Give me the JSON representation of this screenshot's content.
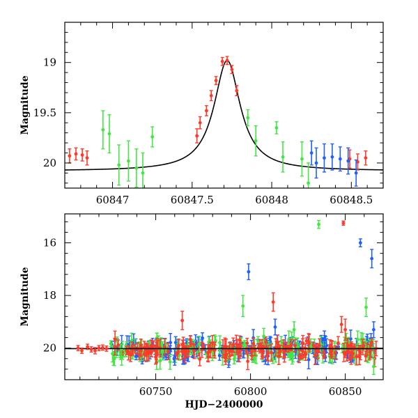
{
  "colors": {
    "red": "#ff3a2a",
    "green": "#44e644",
    "blue": "#2060ff",
    "model": "#000000"
  },
  "chart_data": [
    {
      "type": "scatter",
      "title": "",
      "xlabel": "",
      "ylabel": "Magnitude",
      "xlim": [
        60846.7,
        60848.7
      ],
      "ylim": [
        20.25,
        18.6
      ],
      "y_inverted": true,
      "xticks": [
        60847,
        60847.5,
        60848,
        60848.5
      ],
      "xtick_labels": [
        "60847",
        "60847.5",
        "60848",
        "60848.5"
      ],
      "yticks": [
        19,
        19.5,
        20
      ],
      "ytick_labels": [
        "19",
        "19.5",
        "20"
      ],
      "series": [
        {
          "color": "red",
          "points": [
            [
              60846.73,
              19.93,
              0.07
            ],
            [
              60846.77,
              19.91,
              0.06
            ],
            [
              60846.81,
              19.92,
              0.06
            ],
            [
              60846.84,
              19.95,
              0.07
            ],
            [
              60847.53,
              19.73,
              0.07
            ],
            [
              60847.55,
              19.6,
              0.06
            ],
            [
              60847.59,
              19.48,
              0.05
            ],
            [
              60847.62,
              19.33,
              0.05
            ],
            [
              60847.65,
              19.18,
              0.04
            ],
            [
              60847.69,
              18.99,
              0.04
            ],
            [
              60847.72,
              18.98,
              0.04
            ],
            [
              60847.75,
              19.07,
              0.04
            ],
            [
              60847.78,
              19.28,
              0.05
            ],
            [
              60848.49,
              19.96,
              0.09
            ],
            [
              60848.54,
              19.99,
              0.08
            ],
            [
              60848.59,
              19.95,
              0.07
            ]
          ]
        },
        {
          "color": "green",
          "points": [
            [
              60846.94,
              19.67,
              0.19
            ],
            [
              60846.98,
              19.71,
              0.19
            ],
            [
              60847.04,
              20.02,
              0.2
            ],
            [
              60847.1,
              19.98,
              0.2
            ],
            [
              60847.15,
              20.05,
              0.19
            ],
            [
              60847.19,
              20.1,
              0.2
            ],
            [
              60847.25,
              19.74,
              0.1
            ],
            [
              60847.85,
              19.55,
              0.08
            ],
            [
              60847.9,
              19.78,
              0.15
            ],
            [
              60848.03,
              19.65,
              0.06
            ],
            [
              60848.07,
              19.94,
              0.15
            ],
            [
              60848.19,
              19.96,
              0.17
            ],
            [
              60848.23,
              20.2,
              0.2
            ]
          ]
        },
        {
          "color": "blue",
          "points": [
            [
              60848.25,
              19.9,
              0.12
            ],
            [
              60848.28,
              20.0,
              0.15
            ],
            [
              60848.33,
              19.95,
              0.14
            ],
            [
              60848.38,
              19.94,
              0.13
            ],
            [
              60848.43,
              19.96,
              0.12
            ],
            [
              60848.48,
              19.98,
              0.13
            ],
            [
              60848.53,
              20.1,
              0.13
            ]
          ]
        }
      ],
      "model_curve": {
        "peak_x": 60847.72,
        "peak_mag": 18.98,
        "base_mag": 20.08,
        "width": 0.1
      }
    },
    {
      "type": "scatter",
      "title": "",
      "xlabel": "HJD−2400000",
      "ylabel": "Magnitude",
      "xlim": [
        60702,
        60870
      ],
      "ylim": [
        21.2,
        14.9
      ],
      "y_inverted": true,
      "baseline_mag": 20.02,
      "xticks": [
        60750,
        60800,
        60850
      ],
      "xtick_labels": [
        "60750",
        "60800",
        "60850"
      ],
      "yticks": [
        16,
        18,
        20
      ],
      "ytick_labels": [
        "16",
        "18",
        "20"
      ],
      "dense_band": {
        "x_start": 60726,
        "x_end": 60867,
        "mag_center": 20.05,
        "scatter": 0.18,
        "n_points_per_color": 170
      },
      "series": [
        {
          "color": "red",
          "points": [
            [
              60709,
              20.0,
              0.1
            ],
            [
              60711,
              20.1,
              0.1
            ],
            [
              60714,
              19.95,
              0.1
            ],
            [
              60716,
              20.05,
              0.1
            ],
            [
              60718,
              20.1,
              0.12
            ],
            [
              60720,
              20.0,
              0.1
            ],
            [
              60722,
              19.98,
              0.1
            ],
            [
              60724,
              20.02,
              0.1
            ],
            [
              60764,
              18.95,
              0.35
            ],
            [
              60812,
              18.25,
              0.35
            ],
            [
              60849,
              15.25,
              0.08
            ],
            [
              60850,
              19.3,
              0.4
            ],
            [
              60848,
              19.1,
              0.3
            ]
          ]
        },
        {
          "color": "green",
          "points": [
            [
              60836,
              15.3,
              0.15
            ],
            [
              60796,
              18.4,
              0.4
            ],
            [
              60861,
              18.45,
              0.35
            ],
            [
              60807,
              19.55,
              0.3
            ],
            [
              60823,
              19.3,
              0.3
            ],
            [
              60865,
              20.7,
              0.3
            ],
            [
              60732,
              20.35,
              0.3
            ],
            [
              60773,
              19.85,
              0.3
            ]
          ]
        },
        {
          "color": "blue",
          "points": [
            [
              60858,
              16.0,
              0.15
            ],
            [
              60864,
              16.6,
              0.35
            ],
            [
              60799,
              17.1,
              0.3
            ],
            [
              60813,
              19.2,
              0.3
            ],
            [
              60865,
              19.3,
              0.3
            ],
            [
              60839,
              19.65,
              0.3
            ],
            [
              60760,
              20.35,
              0.3
            ]
          ]
        }
      ],
      "model_line": {
        "mag": 20.02
      }
    }
  ]
}
